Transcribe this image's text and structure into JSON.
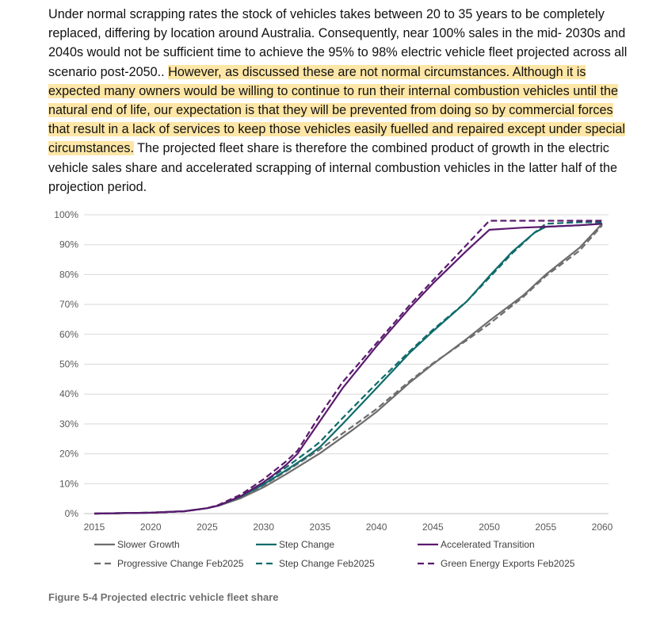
{
  "document": {
    "paragraph": {
      "plain_1": "Under normal scrapping rates the stock of vehicles takes between 20 to 35 years to be completely replaced, differing by location around Australia. Consequently, near 100% sales in the mid- 2030s and 2040s would not be sufficient time to achieve the 95% to 98% electric vehicle fleet projected across all scenario post-2050.. ",
      "highlight_1": "However, as discussed these are not normal circumstances. ",
      "highlight_2": "Although it is expected many owners would be willing to continue to run their internal combustion vehicles until the natural end of life, our expectation is that they will be prevented from doing so by commercial forces that result in a lack of services to keep those vehicles easily fuelled and repaired except under special circumstances.",
      "plain_2": " The projected fleet share is therefore the combined product of growth in the electric vehicle sales share and accelerated scrapping of internal combustion vehicles in the latter half of the projection period."
    },
    "caption": "Figure 5-4 Projected electric vehicle fleet share",
    "highlight_color": "#fde6a6"
  },
  "chart_data": {
    "type": "line",
    "title": "",
    "xlabel": "",
    "ylabel": "",
    "xlim": [
      2015,
      2060
    ],
    "ylim": [
      0,
      100
    ],
    "x_ticks": [
      "2015",
      "2020",
      "2025",
      "2030",
      "2035",
      "2040",
      "2045",
      "2050",
      "2055",
      "2060"
    ],
    "y_ticks": [
      "0%",
      "10%",
      "20%",
      "30%",
      "40%",
      "50%",
      "60%",
      "70%",
      "80%",
      "90%",
      "100%"
    ],
    "grid": "horizontal",
    "legend_position": "bottom",
    "series": [
      {
        "name": "Slower Growth",
        "color": "#6d6d6d",
        "dash": false,
        "x": [
          2015,
          2020,
          2023,
          2025,
          2026,
          2028,
          2030,
          2032,
          2035,
          2038,
          2040,
          2043,
          2045,
          2048,
          2050,
          2053,
          2055,
          2058,
          2060
        ],
        "y": [
          0,
          0.3,
          0.8,
          1.8,
          2.6,
          5.2,
          8.8,
          13.2,
          20.2,
          28.3,
          34,
          44,
          50,
          58.5,
          64.5,
          73,
          80,
          89,
          97
        ]
      },
      {
        "name": "Progressive Change Feb2025",
        "color": "#6d6d6d",
        "dash": true,
        "x": [
          2015,
          2020,
          2023,
          2025,
          2026,
          2028,
          2030,
          2032,
          2035,
          2038,
          2040,
          2043,
          2045,
          2048,
          2050,
          2053,
          2055,
          2058,
          2060
        ],
        "y": [
          0,
          0.3,
          0.8,
          1.8,
          2.7,
          5.6,
          9.5,
          14.2,
          21.5,
          29.5,
          35,
          44.5,
          50.3,
          58,
          63.5,
          72.5,
          79.5,
          88,
          96.5
        ]
      },
      {
        "name": "Step Change",
        "color": "#0f6b6b",
        "dash": false,
        "x": [
          2015,
          2020,
          2023,
          2025,
          2026,
          2028,
          2030,
          2032,
          2034,
          2035,
          2037,
          2040,
          2043,
          2045,
          2048,
          2050,
          2052,
          2054,
          2055,
          2058,
          2060
        ],
        "y": [
          0,
          0.3,
          0.8,
          1.8,
          2.7,
          5.7,
          9.8,
          14.5,
          19.5,
          22.3,
          30,
          42,
          54,
          61,
          71,
          79.5,
          87.5,
          94,
          96,
          96.5,
          97
        ]
      },
      {
        "name": "Step Change Feb2025",
        "color": "#0f6b6b",
        "dash": true,
        "x": [
          2015,
          2020,
          2023,
          2025,
          2026,
          2028,
          2030,
          2032,
          2034,
          2035,
          2037,
          2040,
          2043,
          2045,
          2048,
          2050,
          2052,
          2054,
          2055,
          2058,
          2060
        ],
        "y": [
          0,
          0.3,
          0.8,
          1.8,
          2.8,
          6.0,
          10.4,
          15.5,
          21.0,
          24.0,
          32,
          43.5,
          54.5,
          61.5,
          71,
          79,
          87,
          94,
          97,
          97.5,
          97.5
        ]
      },
      {
        "name": "Accelerated Transition",
        "color": "#5b1a6e",
        "dash": false,
        "x": [
          2015,
          2020,
          2023,
          2025,
          2026,
          2028,
          2030,
          2031,
          2032,
          2033,
          2034,
          2035,
          2037,
          2040,
          2043,
          2045,
          2048,
          2050,
          2053,
          2055,
          2058,
          2060
        ],
        "y": [
          0,
          0.3,
          0.8,
          1.8,
          2.7,
          5.9,
          10.5,
          13.3,
          16.3,
          20,
          25.5,
          31,
          42,
          56,
          69,
          77,
          88,
          95,
          95.7,
          96,
          96.5,
          97
        ]
      },
      {
        "name": "Green Energy Exports Feb2025",
        "color": "#5b1a6e",
        "dash": true,
        "x": [
          2015,
          2020,
          2023,
          2025,
          2026,
          2028,
          2030,
          2031,
          2032,
          2033,
          2034,
          2035,
          2037,
          2040,
          2043,
          2045,
          2048,
          2050,
          2053,
          2055,
          2058,
          2060
        ],
        "y": [
          0,
          0.3,
          0.8,
          1.8,
          2.9,
          6.4,
          11.5,
          14.5,
          17.5,
          21,
          27,
          33,
          44,
          57,
          70,
          78,
          90,
          98,
          98,
          98,
          98,
          98
        ]
      }
    ]
  }
}
